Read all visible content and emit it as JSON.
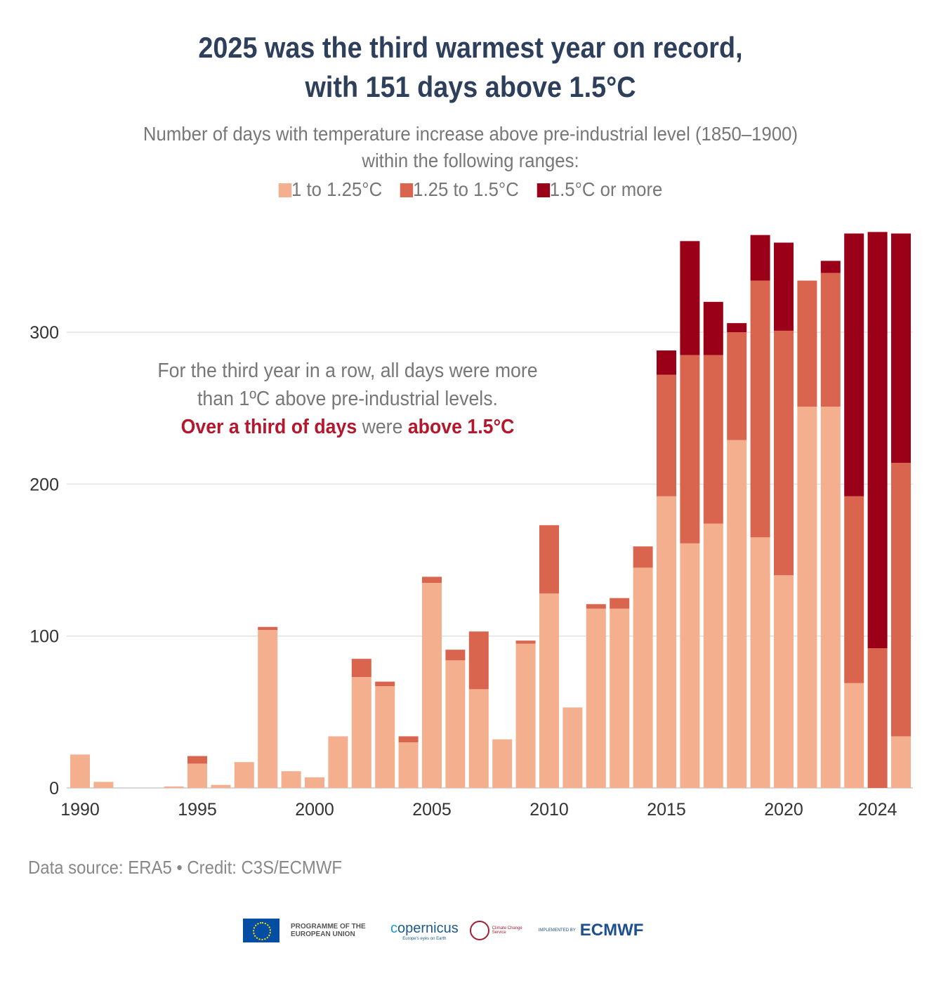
{
  "title_lines": [
    "2025 was the third warmest year on record,",
    "with 151 days above 1.5°C"
  ],
  "subtitle_lines": [
    "Number of days with temperature increase above pre-industrial level (1850–1900)",
    "within the following ranges:"
  ],
  "annotation": {
    "line1": "For the third year in a row, all days were more",
    "line2": "than 1ºC above pre-industrial levels.",
    "hl1": "Over a third of days",
    "mid": " were ",
    "hl2": "above 1.5°C"
  },
  "source": "Data source: ERA5 • Credit: C3S/ECMWF",
  "logos": {
    "eu": "PROGRAMME OF THE EUROPEAN UNION",
    "copernicus": "opernicus",
    "copernicus_tag": "Europe's eyes on Earth",
    "c3s": "Climate Change Service",
    "implemented": "IMPLEMENTED BY",
    "ecmwf": "ECMWF"
  },
  "chart_data": {
    "type": "bar",
    "stacked": true,
    "x": [
      1990,
      1991,
      1992,
      1993,
      1994,
      1995,
      1996,
      1997,
      1998,
      1999,
      2000,
      2001,
      2002,
      2003,
      2004,
      2005,
      2006,
      2007,
      2008,
      2009,
      2010,
      2011,
      2012,
      2013,
      2014,
      2015,
      2016,
      2017,
      2018,
      2019,
      2020,
      2021,
      2022,
      2023,
      2024,
      2025
    ],
    "x_tick_labels": [
      "1990",
      "1995",
      "2000",
      "2005",
      "2010",
      "2015",
      "2020",
      "2024"
    ],
    "x_tick_values": [
      1990,
      1995,
      2000,
      2005,
      2010,
      2015,
      2020,
      2024
    ],
    "y_ticks": [
      0,
      100,
      200,
      300
    ],
    "ylim": [
      0,
      370
    ],
    "grid": true,
    "legend_position": "top",
    "series": [
      {
        "name": "1 to 1.25°C",
        "color": "#f4af8e",
        "values": [
          22,
          4,
          0,
          0,
          1,
          16,
          2,
          17,
          104,
          11,
          7,
          34,
          73,
          67,
          30,
          135,
          84,
          65,
          32,
          95,
          128,
          53,
          118,
          118,
          145,
          192,
          161,
          174,
          229,
          165,
          140,
          251,
          251,
          69,
          0,
          34
        ]
      },
      {
        "name": "1.25 to 1.5°C",
        "color": "#d9654f",
        "values": [
          0,
          0,
          0,
          0,
          0,
          5,
          0,
          0,
          2,
          0,
          0,
          0,
          12,
          3,
          4,
          4,
          7,
          38,
          0,
          2,
          45,
          0,
          3,
          7,
          14,
          80,
          124,
          111,
          71,
          169,
          161,
          83,
          88,
          123,
          92,
          180
        ]
      },
      {
        "name": "1.5°C or more",
        "color": "#9b0019",
        "values": [
          0,
          0,
          0,
          0,
          0,
          0,
          0,
          0,
          0,
          0,
          0,
          0,
          0,
          0,
          0,
          0,
          0,
          0,
          0,
          0,
          0,
          0,
          0,
          0,
          0,
          16,
          75,
          35,
          6,
          30,
          58,
          0,
          8,
          173,
          274,
          151
        ]
      }
    ]
  }
}
